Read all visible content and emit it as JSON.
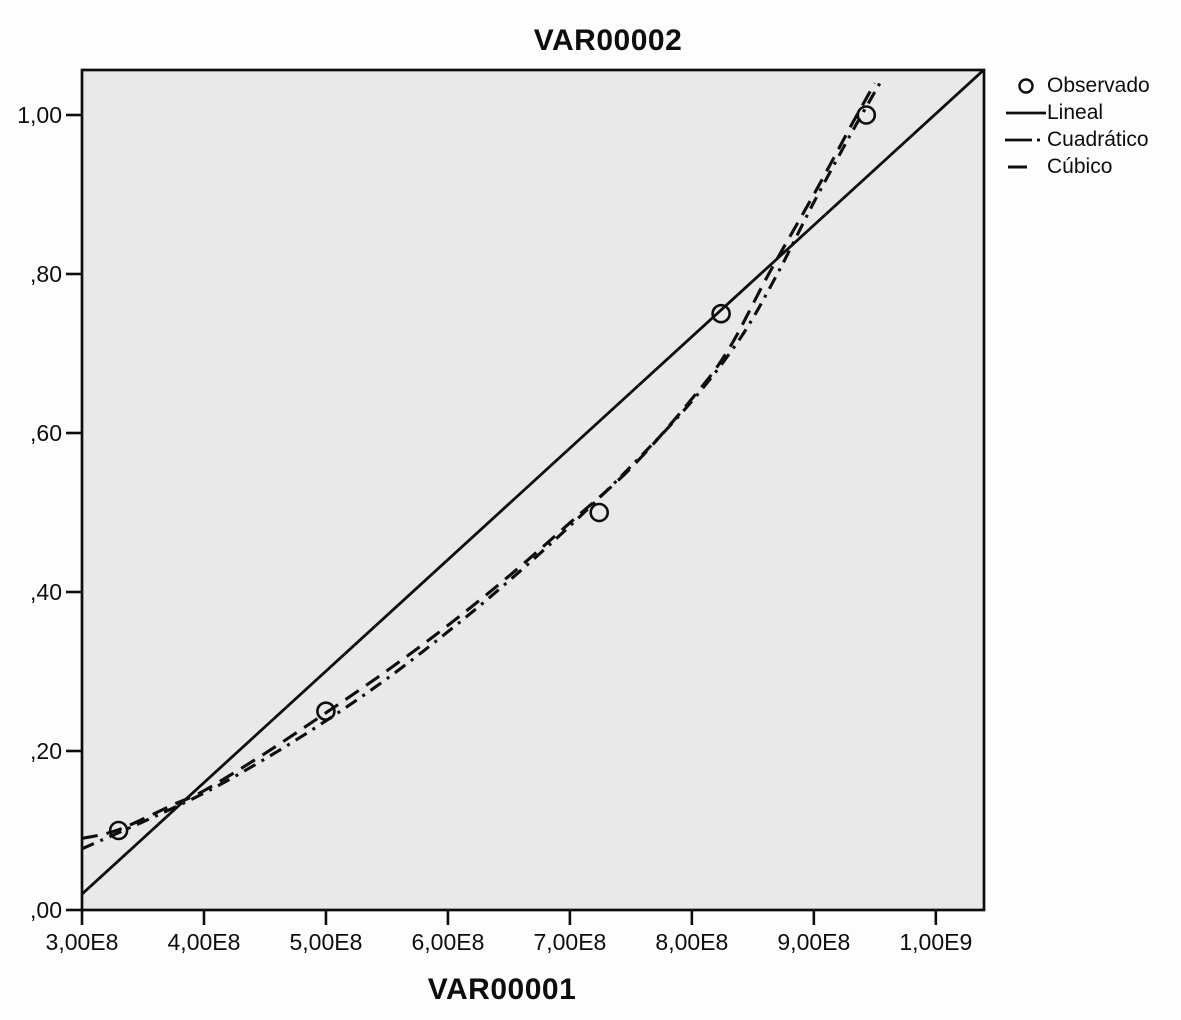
{
  "chart_data": {
    "type": "scatter",
    "title": "VAR00002",
    "xlabel": "VAR00001",
    "ylabel": "",
    "grid": false,
    "legend_position": "top-right",
    "colors": {
      "ink": "#0d0d0d",
      "plot_bg": "#e9e9e9",
      "page_bg": "#fdfdfd"
    },
    "x_axis": {
      "min": 300000000.0,
      "max": 1039500000.0,
      "ticks": [
        {
          "value": 300000000.0,
          "label": "3,00E8"
        },
        {
          "value": 400000000.0,
          "label": "4,00E8"
        },
        {
          "value": 500000000.0,
          "label": "5,00E8"
        },
        {
          "value": 600000000.0,
          "label": "6,00E8"
        },
        {
          "value": 700000000.0,
          "label": "7,00E8"
        },
        {
          "value": 800000000.0,
          "label": "8,00E8"
        },
        {
          "value": 900000000.0,
          "label": "9,00E8"
        },
        {
          "value": 1000000000.0,
          "label": "1,00E9"
        }
      ]
    },
    "y_axis": {
      "min": 0,
      "max": 1.0566,
      "ticks": [
        {
          "value": 1.0,
          "label": "1,00"
        },
        {
          "value": 0.8,
          "label": ",80"
        },
        {
          "value": 0.6,
          "label": ",60"
        },
        {
          "value": 0.4,
          "label": ",40"
        },
        {
          "value": 0.2,
          "label": ",20"
        },
        {
          "value": 0.0,
          "label": ",00"
        }
      ]
    },
    "observed": {
      "name": "Observado",
      "points": [
        [
          330000000.0,
          0.1
        ],
        [
          500000000.0,
          0.25
        ],
        [
          724000000.0,
          0.5
        ],
        [
          824000000.0,
          0.75
        ],
        [
          943000000.0,
          1.0
        ]
      ]
    },
    "series": [
      {
        "name": "Lineal",
        "style": "solid",
        "points": [
          [
            300000000.0,
            0.02
          ],
          [
            1039500000.0,
            1.057
          ]
        ]
      },
      {
        "name": "Cuadrático",
        "style": "dashdot",
        "points": [
          [
            300000000.0,
            0.077
          ],
          [
            350000000.0,
            0.111
          ],
          [
            400000000.0,
            0.147
          ],
          [
            450000000.0,
            0.19
          ],
          [
            500000000.0,
            0.238
          ],
          [
            550000000.0,
            0.291
          ],
          [
            600000000.0,
            0.35
          ],
          [
            650000000.0,
            0.414
          ],
          [
            700000000.0,
            0.483
          ],
          [
            750000000.0,
            0.558
          ],
          [
            800000000.0,
            0.64
          ],
          [
            840000000.0,
            0.72
          ],
          [
            870000000.0,
            0.8
          ],
          [
            900000000.0,
            0.89
          ],
          [
            930000000.0,
            0.975
          ],
          [
            956000000.0,
            1.045
          ]
        ]
      },
      {
        "name": "Cúbico",
        "style": "dash",
        "points": [
          [
            300000000.0,
            0.09
          ],
          [
            330000000.0,
            0.101
          ],
          [
            374000000.0,
            0.132
          ],
          [
            400000000.0,
            0.15
          ],
          [
            450000000.0,
            0.197
          ],
          [
            500000000.0,
            0.248
          ],
          [
            550000000.0,
            0.301
          ],
          [
            600000000.0,
            0.358
          ],
          [
            650000000.0,
            0.42
          ],
          [
            700000000.0,
            0.487
          ],
          [
            750000000.0,
            0.556
          ],
          [
            800000000.0,
            0.643
          ],
          [
            830000000.0,
            0.705
          ],
          [
            863000000.0,
            0.8
          ],
          [
            900000000.0,
            0.9
          ],
          [
            930000000.0,
            0.985
          ],
          [
            950000000.0,
            1.04
          ]
        ]
      }
    ],
    "legend": [
      {
        "label": "Observado",
        "style": "circle"
      },
      {
        "label": "Lineal",
        "style": "solid"
      },
      {
        "label": "Cuadrático",
        "style": "dashdot"
      },
      {
        "label": "Cúbico",
        "style": "dash"
      }
    ]
  }
}
